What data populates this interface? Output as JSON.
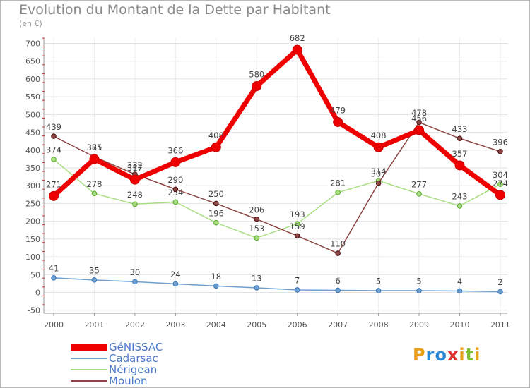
{
  "title": "Evolution du Montant de la Dette par Habitant",
  "subtitle": "(en €)",
  "logo": {
    "text": "Proxiti",
    "letters": [
      {
        "ch": "P",
        "color": "#e8a020"
      },
      {
        "ch": "r",
        "color": "#2a8ad8"
      },
      {
        "ch": "o",
        "color": "#2a8ad8"
      },
      {
        "ch": "x",
        "color": "#e03030"
      },
      {
        "ch": "i",
        "color": "#e8a020"
      },
      {
        "ch": "t",
        "color": "#7ac030"
      },
      {
        "ch": "i",
        "color": "#e8a020"
      }
    ]
  },
  "chart_data": {
    "type": "line",
    "title": "Evolution du Montant de la Dette par Habitant",
    "ylabel": "(en €)",
    "xlabel": "",
    "ylim": [
      -50,
      700
    ],
    "yticks": [
      -50,
      0,
      50,
      100,
      150,
      200,
      250,
      300,
      350,
      400,
      450,
      500,
      550,
      600,
      650,
      700
    ],
    "x": [
      "2000",
      "2001",
      "2002",
      "2003",
      "2004",
      "2005",
      "2006",
      "2007",
      "2008",
      "2009",
      "2010",
      "2011"
    ],
    "grid": true,
    "legend": "bottom-left",
    "series": [
      {
        "name": "GéNISSAC",
        "color": "#ee0000",
        "values": [
          271,
          375,
          317,
          366,
          408,
          580,
          682,
          479,
          408,
          456,
          357,
          274
        ]
      },
      {
        "name": "Cadarsac",
        "color": "#6f9fcf",
        "values": [
          41,
          35,
          30,
          24,
          18,
          13,
          7,
          6,
          5,
          5,
          4,
          2
        ]
      },
      {
        "name": "Nérigean",
        "color": "#a8dd80",
        "values": [
          374,
          278,
          248,
          254,
          196,
          153,
          193,
          281,
          314,
          277,
          243,
          304
        ]
      },
      {
        "name": "Moulon",
        "color": "#8b4545",
        "values": [
          439,
          381,
          332,
          290,
          250,
          206,
          159,
          110,
          307,
          478,
          433,
          396
        ]
      }
    ]
  }
}
